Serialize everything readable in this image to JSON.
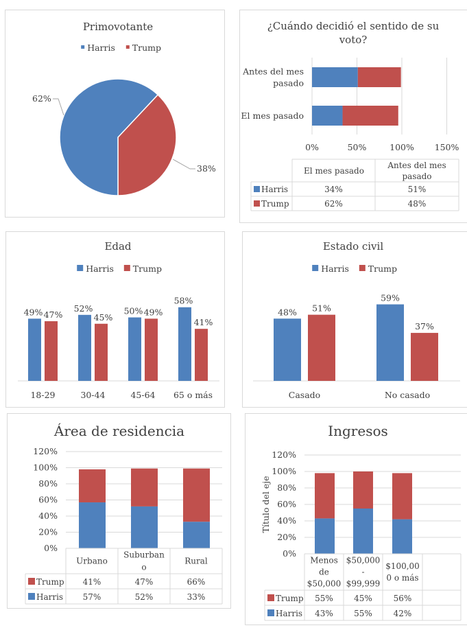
{
  "colors": {
    "harris": "#4f81bd",
    "trump": "#c0504d",
    "grid": "#d9d9d9",
    "text": "#404040"
  },
  "chart_data": [
    {
      "id": "primovotante",
      "type": "pie",
      "title": "Primovotante",
      "legend": [
        "Harris",
        "Trump"
      ],
      "legend_position": "top",
      "categories": [
        "Harris",
        "Trump"
      ],
      "values": [
        62,
        38
      ],
      "data_labels": [
        "62%",
        "38%"
      ]
    },
    {
      "id": "cuando-decidio",
      "type": "bar",
      "orientation": "horizontal",
      "stacked": true,
      "title": "¿Cuándo decidió el sentido de su voto?",
      "title_lines": [
        "¿Cuándo decidió el sentido de su",
        "voto?"
      ],
      "categories": [
        "El mes pasado",
        "Antes del mes pasado"
      ],
      "category_label_lines": [
        [
          "El mes pasado"
        ],
        [
          "Antes del mes",
          "pasado"
        ]
      ],
      "series": [
        {
          "name": "Harris",
          "values": [
            34,
            51
          ]
        },
        {
          "name": "Trump",
          "values": [
            62,
            48
          ]
        }
      ],
      "xlim": [
        0,
        150
      ],
      "xticks": [
        "0%",
        "50%",
        "100%",
        "150%"
      ],
      "grid": true,
      "data_table": {
        "headers": [
          "",
          "El mes pasado",
          "Antes del mes pasado"
        ],
        "header_lines": [
          [
            ""
          ],
          [
            "El mes pasado"
          ],
          [
            "Antes del mes",
            "pasado"
          ]
        ],
        "rows": [
          {
            "series": "Harris",
            "cells": [
              "34%",
              "51%"
            ]
          },
          {
            "series": "Trump",
            "cells": [
              "62%",
              "48%"
            ]
          }
        ]
      }
    },
    {
      "id": "edad",
      "type": "bar",
      "title": "Edad",
      "legend": [
        "Harris",
        "Trump"
      ],
      "legend_position": "top",
      "categories": [
        "18-29",
        "30-44",
        "45-64",
        "65 o más"
      ],
      "series": [
        {
          "name": "Harris",
          "values": [
            49,
            52,
            50,
            58
          ],
          "labels": [
            "49%",
            "52%",
            "50%",
            "58%"
          ]
        },
        {
          "name": "Trump",
          "values": [
            47,
            45,
            49,
            41
          ],
          "labels": [
            "47%",
            "45%",
            "49%",
            "41%"
          ]
        }
      ],
      "ylim": [
        0,
        75
      ]
    },
    {
      "id": "estado-civil",
      "type": "bar",
      "title": "Estado civil",
      "legend": [
        "Harris",
        "Trump"
      ],
      "legend_position": "top",
      "categories": [
        "Casado",
        "No casado"
      ],
      "series": [
        {
          "name": "Harris",
          "values": [
            48,
            59
          ],
          "labels": [
            "48%",
            "59%"
          ]
        },
        {
          "name": "Trump",
          "values": [
            51,
            37
          ],
          "labels": [
            "51%",
            "37%"
          ]
        }
      ],
      "ylim": [
        0,
        75
      ]
    },
    {
      "id": "area-residencia",
      "type": "bar",
      "stacked": true,
      "title": "Área de residencia",
      "categories": [
        "Urbano",
        "Suburbano",
        "Rural"
      ],
      "category_label_lines": [
        [
          "Urbano"
        ],
        [
          "Suburban",
          "o"
        ],
        [
          "Rural"
        ]
      ],
      "series": [
        {
          "name": "Harris",
          "values": [
            57,
            52,
            33
          ]
        },
        {
          "name": "Trump",
          "values": [
            41,
            47,
            66
          ]
        }
      ],
      "ylim": [
        0,
        120
      ],
      "yticks": [
        "0%",
        "20%",
        "40%",
        "60%",
        "80%",
        "100%",
        "120%"
      ],
      "grid": true,
      "data_table": {
        "rows": [
          {
            "series": "Trump",
            "cells": [
              "41%",
              "47%",
              "66%"
            ]
          },
          {
            "series": "Harris",
            "cells": [
              "57%",
              "52%",
              "33%"
            ]
          }
        ]
      }
    },
    {
      "id": "ingresos",
      "type": "bar",
      "stacked": true,
      "title": "Ingresos",
      "ylabel": "Título del eje",
      "categories": [
        "Menos de $50,000",
        "$50,000 - $99,999",
        "$100,000 o más",
        ""
      ],
      "category_label_lines": [
        [
          "Menos",
          "de",
          "$50,000"
        ],
        [
          "$50,000",
          "-",
          "$99,999"
        ],
        [
          "$100,00",
          "0 o más"
        ],
        []
      ],
      "series": [
        {
          "name": "Harris",
          "values": [
            43,
            55,
            42
          ]
        },
        {
          "name": "Trump",
          "values": [
            55,
            45,
            56
          ]
        }
      ],
      "ylim": [
        0,
        120
      ],
      "yticks": [
        "0%",
        "20%",
        "40%",
        "60%",
        "80%",
        "100%",
        "120%"
      ],
      "grid": true,
      "data_table": {
        "rows": [
          {
            "series": "Trump",
            "cells": [
              "55%",
              "45%",
              "56%",
              ""
            ]
          },
          {
            "series": "Harris",
            "cells": [
              "43%",
              "55%",
              "42%",
              ""
            ]
          }
        ]
      }
    }
  ]
}
